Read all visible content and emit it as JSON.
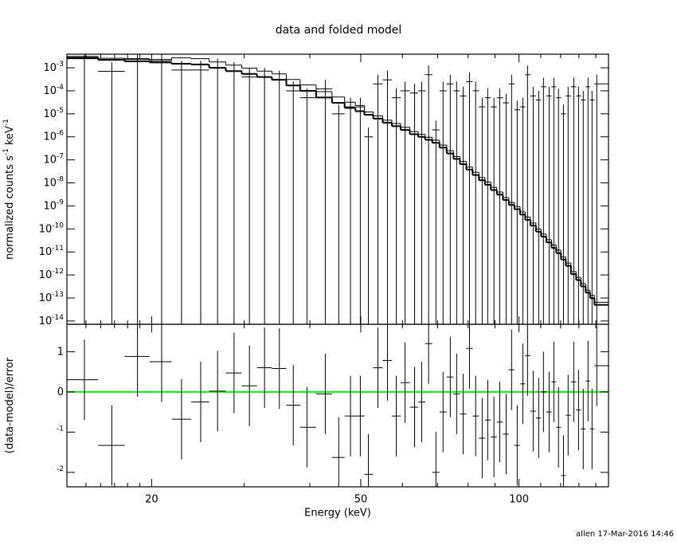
{
  "credit": "allen 17-Mar-2016 14:46",
  "chart_data": [
    {
      "type": "errorbar",
      "title": "data and folded model",
      "ylabel": "normalized counts s-1 keV-1",
      "xlog": true,
      "ylog": true,
      "xlim": [
        13.8,
        148
      ],
      "ylim": [
        7.2e-15,
        0.0039
      ],
      "color": "#000000",
      "yticks": [
        {
          "value": 0.001,
          "label": "10-3"
        },
        {
          "value": 0.0001,
          "label": "10-4"
        },
        {
          "value": 1e-05,
          "label": "10-5"
        },
        {
          "value": 1e-06,
          "label": "10-6"
        },
        {
          "value": 1e-07,
          "label": "10-7"
        },
        {
          "value": 1e-08,
          "label": "10-8"
        },
        {
          "value": 1e-09,
          "label": "10-9"
        },
        {
          "value": 1e-10,
          "label": "10-10"
        },
        {
          "value": 1e-11,
          "label": "10-11"
        },
        {
          "value": 1e-12,
          "label": "10-12"
        },
        {
          "value": 1e-13,
          "label": "10-13"
        },
        {
          "value": 1e-14,
          "label": "10-14"
        }
      ],
      "xtick_marks": [
        15,
        16,
        17,
        18,
        19,
        20,
        30,
        40,
        50,
        60,
        70,
        80,
        90,
        100,
        110,
        120,
        130,
        140
      ],
      "x": [
        14.9,
        16.8,
        18.8,
        20.9,
        22.8,
        24.8,
        26.7,
        28.7,
        30.7,
        32.8,
        35.0,
        37.2,
        39.5,
        42.8,
        45.4,
        47.8,
        49.9,
        51.7,
        53.9,
        56.2,
        58.4,
        60.7,
        63.3,
        65.3,
        67.3,
        69.5,
        71.7,
        74.0,
        76.1,
        78.3,
        80.5,
        82.7,
        85.1,
        87.2,
        89.6,
        91.9,
        94.5,
        96.8,
        99.2,
        101.7,
        103.8,
        106.4,
        109.0,
        111.3,
        114.1,
        116.5,
        118.9,
        121.5,
        124.0,
        127.1,
        129.8,
        132.5,
        135.3,
        137.7,
        140.6
      ],
      "values": [
        0.0028,
        0.0007,
        0.0025,
        0.0023,
        0.0008,
        0.0008,
        0.001,
        0.0007,
        0.0004,
        0.0004,
        0.0003,
        0.0001,
        5e-05,
        0.00012,
        1e-05,
        2e-05,
        2e-05,
        1e-06,
        0.0002,
        0.0003,
        5e-05,
        0.0001,
        8e-05,
        0.0001,
        0.0005,
        2e-06,
        0.0001,
        0.0002,
        0.0001,
        6e-05,
        0.00025,
        0.0001,
        2e-05,
        5e-05,
        2e-05,
        5e-05,
        3e-05,
        0.0002,
        1.5e-05,
        2e-05,
        0.0005,
        6e-05,
        4e-05,
        0.00015,
        6e-05,
        0.00015,
        5e-05,
        1e-05,
        6e-05,
        0.00015,
        6e-05,
        4e-05,
        0.00015,
        4e-05,
        0.0002
      ],
      "errors": [
        0.0042,
        0.00105,
        0.00375,
        0.00345,
        0.0012,
        0.0012,
        0.0015,
        0.00105,
        0.0006,
        0.0006,
        0.00045,
        0.00015,
        7.5e-05,
        0.00018,
        1.5e-05,
        3e-05,
        3e-05,
        1.5e-06,
        0.0003,
        0.00045,
        7.5e-05,
        0.00015,
        0.00012,
        0.00015,
        0.00075,
        3e-06,
        0.00015,
        0.0003,
        0.00015,
        9e-05,
        0.000375,
        0.00015,
        3e-05,
        7.5e-05,
        3e-05,
        7.5e-05,
        4.5e-05,
        0.0003,
        2.25e-05,
        3e-05,
        0.00075,
        9e-05,
        6e-05,
        0.000225,
        9e-05,
        0.000225,
        7.5e-05,
        1.5e-05,
        9e-05,
        0.000225,
        9e-05,
        6e-05,
        0.000225,
        6e-05,
        0.0003
      ],
      "models": [
        {
          "color": "#000000",
          "values": [
            0.0026,
            0.0022,
            0.0019,
            0.0017,
            0.0015,
            0.0014,
            0.001,
            0.00072,
            0.00054,
            0.0004,
            0.0003,
            0.00017,
            0.0001,
            5.1e-05,
            3e-05,
            1.8e-05,
            1.3e-05,
            9.1e-06,
            6.2e-06,
            4.1e-06,
            2.9e-06,
            2e-06,
            1.3e-06,
            1e-06,
            7.4e-07,
            5.5e-07,
            3.4e-07,
            1.9e-07,
            1.1e-07,
            6.5e-08,
            3.8e-08,
            2.2e-08,
            1.3e-08,
            8.3e-09,
            4.9e-09,
            3.1e-09,
            1.8e-09,
            1.1e-09,
            7.2e-10,
            4.2e-10,
            2.5e-10,
            1.4e-10,
            7.6e-11,
            4.6e-11,
            2.6e-11,
            1.5e-11,
            8.9e-12,
            4.7e-12,
            2.5e-12,
            1.1e-12,
            6e-13,
            3.2e-13,
            1.7e-13,
            9.8e-14,
            5e-14
          ]
        },
        {
          "color": "#000000",
          "values": [
            0.0031,
            0.0026,
            0.0023,
            0.002,
            0.0027,
            0.0025,
            0.0018,
            0.0013,
            0.00097,
            0.00072,
            0.00054,
            0.00031,
            0.00018,
            9.2e-05,
            5.4e-05,
            3.2e-05,
            2.3e-05,
            1.2e-05,
            8.1e-06,
            5.3e-06,
            3.8e-06,
            2.6e-06,
            1.7e-06,
            1.3e-06,
            9.6e-07,
            7.2e-07,
            4.4e-07,
            2.5e-07,
            1.4e-07,
            8.5e-08,
            4.9e-08,
            2.9e-08,
            1.7e-08,
            1.1e-08,
            6.4e-09,
            4e-09,
            2.3e-09,
            1.4e-09,
            9.4e-10,
            5.5e-10,
            3.3e-10,
            1.8e-10,
            9.9e-11,
            6e-11,
            3.4e-11,
            2e-11,
            1.2e-11,
            6.1e-12,
            3.3e-12,
            1.4e-12,
            7.8e-13,
            4.2e-13,
            2.2e-13,
            1.3e-13,
            6.5e-14
          ]
        }
      ]
    },
    {
      "type": "errorbar",
      "ylabel": "(data-model)/error",
      "xlabel": "Energy (keV)",
      "xlog": true,
      "ylog": false,
      "xlim": [
        13.8,
        148
      ],
      "ylim": [
        -2.36,
        1.68
      ],
      "color": "#000000",
      "yticks": [
        -2,
        -1,
        0,
        1
      ],
      "xticks": [
        20,
        50,
        100
      ],
      "xtick_marks": [
        15,
        16,
        17,
        18,
        19,
        20,
        30,
        40,
        50,
        60,
        70,
        80,
        90,
        100,
        110,
        120,
        130,
        140
      ],
      "hline": {
        "value": 0,
        "color": "#00ff00"
      },
      "x": [
        14.9,
        16.8,
        18.8,
        20.9,
        22.8,
        24.8,
        26.7,
        28.7,
        30.7,
        32.8,
        35.0,
        37.2,
        39.5,
        42.8,
        45.4,
        47.8,
        49.9,
        51.7,
        53.9,
        56.2,
        58.4,
        60.7,
        63.3,
        65.3,
        67.3,
        69.5,
        71.7,
        74.0,
        76.1,
        78.3,
        80.5,
        82.7,
        85.1,
        87.2,
        89.6,
        91.9,
        94.5,
        96.8,
        99.2,
        101.7,
        103.8,
        106.4,
        109.0,
        111.3,
        114.1,
        116.5,
        118.9,
        121.5,
        124.0,
        127.1,
        129.8,
        132.5,
        135.3,
        137.7,
        140.6
      ],
      "values": [
        0.3,
        -1.33,
        0.88,
        0.75,
        -0.68,
        -0.25,
        0.02,
        0.47,
        0.15,
        0.6,
        0.58,
        -0.33,
        -0.88,
        -0.05,
        -1.63,
        -0.6,
        -0.6,
        -2.05,
        0.6,
        0.78,
        -0.6,
        0.23,
        -0.38,
        -0.25,
        1.2,
        -2.0,
        -0.5,
        0.37,
        -0.05,
        -0.55,
        1.08,
        -0.6,
        -1.15,
        -0.7,
        -1.12,
        -0.75,
        -1.05,
        0.55,
        -1.33,
        0.2,
        0.9,
        -0.48,
        -0.65,
        0.0,
        -0.5,
        0.25,
        -0.88,
        -2.08,
        -0.58,
        0.25,
        -0.45,
        -0.92,
        0.27,
        -0.92,
        0.65
      ],
      "errors": [
        1,
        1,
        1,
        1,
        1,
        1,
        1,
        1,
        1,
        1,
        1,
        1,
        1,
        1,
        1,
        1,
        1,
        1,
        1,
        1,
        1,
        1,
        1,
        1,
        1,
        1,
        1,
        1,
        1,
        1,
        1,
        1,
        1,
        1,
        1,
        1,
        1,
        1,
        1,
        1,
        1,
        1,
        1,
        1,
        1,
        1,
        1,
        1,
        1,
        1,
        1,
        1,
        1,
        1,
        1
      ]
    }
  ]
}
